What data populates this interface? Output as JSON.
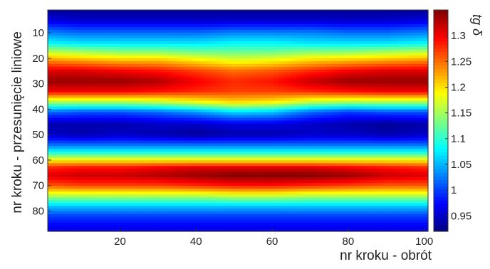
{
  "chart_data": {
    "type": "heatmap",
    "title": "",
    "xlabel": "nr kroku - obrót",
    "ylabel": "nr kroku - przesunięcie liniowe",
    "colorbar_label": "tg δ",
    "xlim": [
      1,
      101
    ],
    "ylim": [
      1,
      88
    ],
    "y_reversed": true,
    "x_ticks": [
      "20",
      "40",
      "60",
      "80",
      "100"
    ],
    "y_ticks": [
      "10",
      "20",
      "30",
      "40",
      "50",
      "60",
      "70",
      "80"
    ],
    "color_range": [
      0.92,
      1.35
    ],
    "colorbar_ticks": [
      "0.95",
      "1",
      "1.05",
      "1.1",
      "1.15",
      "1.2",
      "1.25",
      "1.3"
    ],
    "colormap": "jet",
    "rows_y": [
      1,
      5,
      10,
      14,
      17,
      21,
      25,
      29,
      33,
      37,
      41,
      46,
      50,
      54,
      57,
      60,
      63,
      66,
      70,
      74,
      78,
      82,
      86,
      88
    ],
    "columns_x": [
      1,
      10,
      20,
      30,
      40,
      50,
      60,
      70,
      80,
      90,
      101
    ],
    "values": [
      [
        0.93,
        0.93,
        0.93,
        0.93,
        0.93,
        0.93,
        0.93,
        0.93,
        0.93,
        0.93,
        0.93
      ],
      [
        0.96,
        0.95,
        0.95,
        0.95,
        0.95,
        0.95,
        0.95,
        0.95,
        0.95,
        0.95,
        0.96
      ],
      [
        1.03,
        1.02,
        1.02,
        1.02,
        1.02,
        1.03,
        1.03,
        1.03,
        1.02,
        1.02,
        1.03
      ],
      [
        1.08,
        1.07,
        1.07,
        1.07,
        1.07,
        1.08,
        1.08,
        1.07,
        1.07,
        1.07,
        1.08
      ],
      [
        1.15,
        1.14,
        1.13,
        1.13,
        1.12,
        1.12,
        1.12,
        1.13,
        1.13,
        1.14,
        1.15
      ],
      [
        1.24,
        1.23,
        1.22,
        1.22,
        1.2,
        1.18,
        1.19,
        1.21,
        1.22,
        1.23,
        1.24
      ],
      [
        1.31,
        1.31,
        1.3,
        1.29,
        1.27,
        1.25,
        1.26,
        1.28,
        1.3,
        1.31,
        1.31
      ],
      [
        1.34,
        1.34,
        1.34,
        1.33,
        1.3,
        1.28,
        1.29,
        1.32,
        1.34,
        1.34,
        1.34
      ],
      [
        1.3,
        1.3,
        1.3,
        1.29,
        1.28,
        1.27,
        1.27,
        1.28,
        1.29,
        1.3,
        1.3
      ],
      [
        1.16,
        1.16,
        1.16,
        1.17,
        1.19,
        1.21,
        1.2,
        1.17,
        1.16,
        1.16,
        1.16
      ],
      [
        1.02,
        1.01,
        1.01,
        1.02,
        1.04,
        1.07,
        1.06,
        1.02,
        1.0,
        1.01,
        1.01
      ],
      [
        0.94,
        0.94,
        0.94,
        0.95,
        0.95,
        0.96,
        0.96,
        0.95,
        0.94,
        0.93,
        0.94
      ],
      [
        0.95,
        0.94,
        0.95,
        0.94,
        0.93,
        0.94,
        0.94,
        0.95,
        0.95,
        0.94,
        0.95
      ],
      [
        1.02,
        1.02,
        1.02,
        1.02,
        1.02,
        1.02,
        1.02,
        1.02,
        1.02,
        1.02,
        1.02
      ],
      [
        1.09,
        1.09,
        1.09,
        1.09,
        1.09,
        1.09,
        1.09,
        1.09,
        1.09,
        1.09,
        1.09
      ],
      [
        1.19,
        1.19,
        1.19,
        1.19,
        1.19,
        1.19,
        1.19,
        1.19,
        1.19,
        1.19,
        1.19
      ],
      [
        1.28,
        1.29,
        1.29,
        1.3,
        1.31,
        1.31,
        1.31,
        1.31,
        1.3,
        1.29,
        1.28
      ],
      [
        1.31,
        1.32,
        1.32,
        1.33,
        1.34,
        1.35,
        1.35,
        1.35,
        1.34,
        1.32,
        1.31
      ],
      [
        1.26,
        1.27,
        1.27,
        1.27,
        1.28,
        1.29,
        1.29,
        1.28,
        1.27,
        1.26,
        1.26
      ],
      [
        1.16,
        1.16,
        1.16,
        1.16,
        1.16,
        1.17,
        1.17,
        1.16,
        1.16,
        1.16,
        1.16
      ],
      [
        1.06,
        1.06,
        1.06,
        1.06,
        1.06,
        1.06,
        1.06,
        1.06,
        1.06,
        1.06,
        1.06
      ],
      [
        1.0,
        1.0,
        1.0,
        1.0,
        1.0,
        1.0,
        1.0,
        1.0,
        1.0,
        1.0,
        1.0
      ],
      [
        0.97,
        0.97,
        0.97,
        0.97,
        0.97,
        0.97,
        0.97,
        0.97,
        0.97,
        0.97,
        0.97
      ],
      [
        0.96,
        0.96,
        0.96,
        0.96,
        0.96,
        0.96,
        0.96,
        0.96,
        0.96,
        0.96,
        0.96
      ]
    ],
    "grid": false,
    "legend": "colorbar-right"
  }
}
